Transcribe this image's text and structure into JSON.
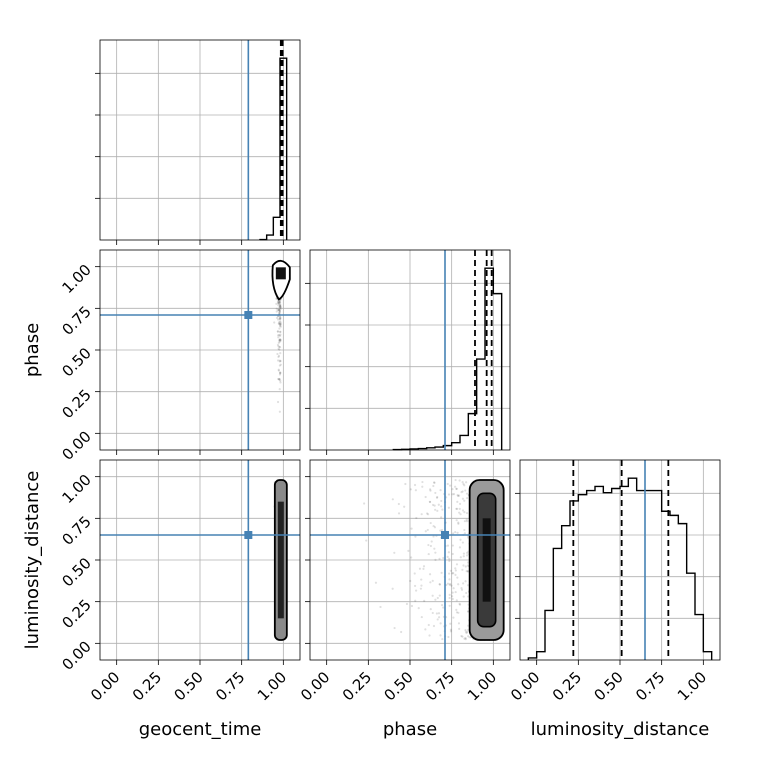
{
  "chart_data": {
    "type": "corner",
    "parameters": [
      "geocent_time",
      "phase",
      "luminosity_distance"
    ],
    "truths": {
      "geocent_time": 0.79,
      "phase": 0.71,
      "luminosity_distance": 0.65
    },
    "truth_color": "#4682b4",
    "hist_color": "#000000",
    "grid": true,
    "axis_range": [
      -0.1,
      1.1
    ],
    "tick_values": [
      0.0,
      0.25,
      0.5,
      0.75,
      1.0
    ],
    "tick_labels": [
      "0.00",
      "0.25",
      "0.50",
      "0.75",
      "1.00"
    ],
    "histograms": [
      {
        "parameter": "geocent_time",
        "bin_edges": [
          0.86,
          0.9,
          0.94,
          0.98,
          1.02
        ],
        "counts": [
          0.01,
          0.12,
          0.55,
          4.4
        ],
        "quantiles": [
          0.985,
          0.992,
          0.996
        ]
      },
      {
        "parameter": "phase",
        "bin_edges": [
          0.4,
          0.45,
          0.5,
          0.55,
          0.6,
          0.65,
          0.7,
          0.75,
          0.8,
          0.85,
          0.9,
          0.95,
          1.0,
          1.05
        ],
        "counts": [
          0.01,
          0.02,
          0.03,
          0.04,
          0.06,
          0.08,
          0.12,
          0.2,
          0.4,
          1.0,
          2.5,
          5.0,
          4.3
        ],
        "quantiles": [
          0.89,
          0.96,
          0.99
        ]
      },
      {
        "parameter": "luminosity_distance",
        "bin_edges": [
          -0.05,
          0.0,
          0.05,
          0.1,
          0.15,
          0.2,
          0.25,
          0.3,
          0.35,
          0.4,
          0.45,
          0.5,
          0.55,
          0.6,
          0.65,
          0.7,
          0.75,
          0.8,
          0.85,
          0.9,
          0.95,
          1.0,
          1.05
        ],
        "counts": [
          0.05,
          0.2,
          1.2,
          2.7,
          3.25,
          3.85,
          4.0,
          4.1,
          4.2,
          4.05,
          4.15,
          4.2,
          4.4,
          4.1,
          4.1,
          4.1,
          3.6,
          3.5,
          3.3,
          2.1,
          1.1,
          0.2
        ],
        "quantiles": [
          0.22,
          0.51,
          0.79
        ]
      }
    ],
    "panels_2d": [
      {
        "x": "geocent_time",
        "y": "phase"
      },
      {
        "x": "geocent_time",
        "y": "luminosity_distance"
      },
      {
        "x": "phase",
        "y": "luminosity_distance"
      }
    ]
  }
}
